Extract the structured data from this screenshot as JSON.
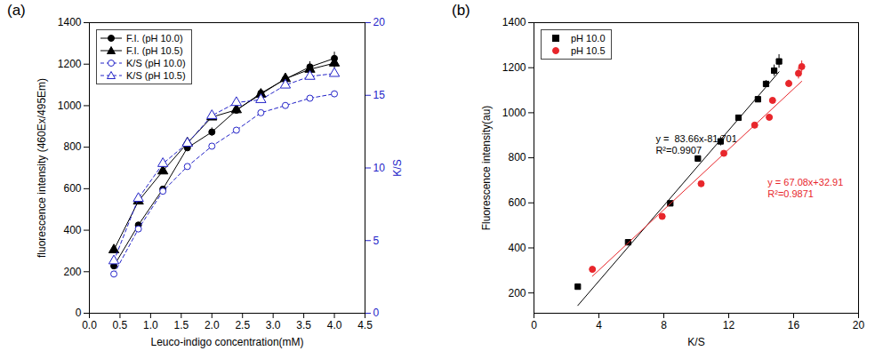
{
  "chart_data": [
    {
      "type": "line",
      "title": "(a)",
      "xlabel": "Leuco-indigo concentration(mM)",
      "ylabel": "fluorescence intensity (460Ex/495Em)",
      "y2label": "K/S",
      "x": [
        0.4,
        0.8,
        1.2,
        1.6,
        2.0,
        2.4,
        2.8,
        3.2,
        3.6,
        4.0
      ],
      "xlim": [
        0,
        4.5
      ],
      "xticks": [
        {
          "value": 0,
          "label": "0.0"
        },
        {
          "value": 0.5,
          "label": "0.5"
        },
        {
          "value": 1,
          "label": "1.0"
        },
        {
          "value": 1.5,
          "label": "1.5"
        },
        {
          "value": 2,
          "label": "2.0"
        },
        {
          "value": 2.5,
          "label": "2.5"
        },
        {
          "value": 3,
          "label": "3.0"
        },
        {
          "value": 3.5,
          "label": "3.5"
        },
        {
          "value": 4,
          "label": "4.0"
        },
        {
          "value": 4.5,
          "label": "4.5"
        }
      ],
      "ylim": [
        0,
        1400
      ],
      "yticks": [
        0,
        200,
        400,
        600,
        800,
        1000,
        1200,
        1400
      ],
      "y2lim": [
        0,
        20
      ],
      "y2ticks": [
        0,
        5,
        10,
        15,
        20
      ],
      "legend": "top-left",
      "series": [
        {
          "name": "F.I. (pH 10.0)",
          "color": "#000000",
          "marker": "circle",
          "line_style": "solid",
          "values": [
            228,
            425,
            598,
            797,
            873,
            978,
            1060,
            1128,
            1187,
            1228
          ],
          "errors": [
            0,
            0,
            0,
            0,
            20,
            0,
            12,
            15,
            25,
            30
          ]
        },
        {
          "name": "F.I. (pH 10.5)",
          "color": "#000000",
          "marker": "triangle",
          "line_style": "solid",
          "values": [
            305,
            540,
            685,
            820,
            945,
            980,
            1055,
            1130,
            1175,
            1205
          ],
          "errors": [
            0,
            0,
            0,
            0,
            0,
            0,
            0,
            15,
            25,
            25
          ]
        },
        {
          "name": "K/S (pH 10.0)",
          "color": "#2323c8",
          "marker": "open_circle",
          "line_style": "dashed",
          "axis": "y2",
          "values": [
            2.7,
            5.8,
            8.4,
            10.1,
            11.5,
            12.6,
            13.8,
            14.3,
            14.8,
            15.1
          ]
        },
        {
          "name": "K/S (pH 10.5)",
          "color": "#2323c8",
          "marker": "open_triangle",
          "line_style": "dashed",
          "axis": "y2",
          "values": [
            3.6,
            7.9,
            10.3,
            11.7,
            13.6,
            14.5,
            14.7,
            15.7,
            16.3,
            16.5
          ]
        }
      ]
    },
    {
      "type": "scatter",
      "title": "(b)",
      "xlabel": "K/S",
      "ylabel": "Fluorescence intensity(au)",
      "xlim": [
        0,
        20
      ],
      "xticks": [
        0,
        4,
        8,
        12,
        16,
        20
      ],
      "ylim": [
        110,
        1400
      ],
      "yticks": [
        200,
        400,
        600,
        800,
        1000,
        1200,
        1400
      ],
      "legend": "top-left",
      "series": [
        {
          "name": "pH 10.0",
          "color": "#000000",
          "marker": "square",
          "x": [
            2.7,
            5.8,
            8.4,
            10.1,
            11.5,
            12.6,
            13.8,
            14.3,
            14.8,
            15.1
          ],
          "values": [
            228,
            425,
            598,
            797,
            873,
            978,
            1060,
            1128,
            1187,
            1228
          ],
          "errors": [
            0,
            0,
            0,
            0,
            20,
            0,
            12,
            15,
            25,
            30
          ],
          "fit": {
            "slope": 83.66,
            "intercept": -81.701,
            "label": "y =  83.66x-81.701",
            "r2_label": "R²=0.9907"
          }
        },
        {
          "name": "pH 10.5",
          "color": "#e8262b",
          "marker": "circle",
          "x": [
            3.6,
            7.9,
            10.3,
            11.7,
            13.6,
            14.5,
            14.7,
            15.7,
            16.3,
            16.5
          ],
          "values": [
            305,
            540,
            685,
            820,
            945,
            980,
            1055,
            1130,
            1175,
            1205
          ],
          "errors": [
            0,
            0,
            0,
            0,
            0,
            0,
            0,
            15,
            25,
            25
          ],
          "fit": {
            "slope": 67.08,
            "intercept": 32.91,
            "label": "y = 67.08x+32.91",
            "r2_label": "R²=0.9871"
          }
        }
      ]
    }
  ]
}
